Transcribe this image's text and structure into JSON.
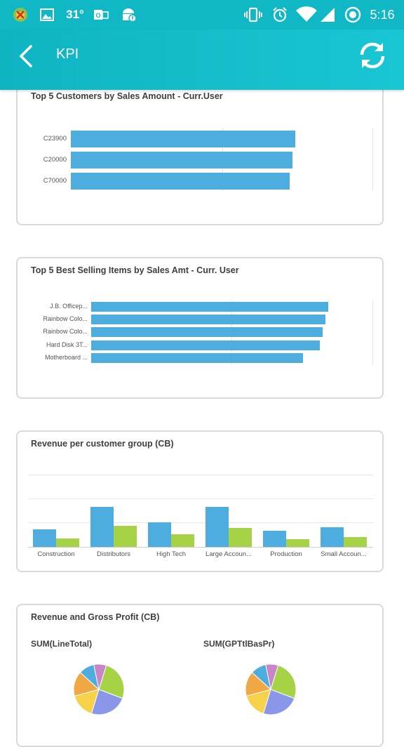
{
  "status_bar": {
    "temperature": "31°",
    "time": "5:16",
    "icons": [
      "android-debug-icon",
      "image-icon",
      "outlook-icon",
      "android-alert-icon",
      "vibrate-icon",
      "alarm-icon",
      "wifi-icon",
      "signal-icon",
      "sync-status-icon"
    ]
  },
  "header": {
    "title": "KPI",
    "back_icon": "chevron-left-icon",
    "refresh_icon": "refresh-icon"
  },
  "colors": {
    "primary": "#10b8c6",
    "bar_blue": "#4eaddf",
    "bar_green": "#a6d246",
    "card_border": "#d9d9d9"
  },
  "cards": {
    "top_customers": {
      "title": "Top 5 Customers by Sales Amount - Curr.User"
    },
    "top_items": {
      "title": "Top 5 Best Selling Items by Sales Amt - Curr. User"
    },
    "revenue_group": {
      "title": "Revenue per customer group (CB)"
    },
    "revenue_profit": {
      "title": "Revenue and Gross Profit (CB)",
      "left_label": "SUM(LineTotal)",
      "right_label": "SUM(GPTtlBasPr)"
    }
  },
  "chart_data": [
    {
      "type": "bar",
      "orientation": "horizontal",
      "title": "Top 5 Customers by Sales Amount - Curr.User",
      "categories": [
        "C23900",
        "C20000",
        "C70000"
      ],
      "values": [
        0.75,
        0.74,
        0.73
      ],
      "grid": true
    },
    {
      "type": "bar",
      "orientation": "horizontal",
      "title": "Top 5 Best Selling Items by Sales Amt - Curr. User",
      "categories": [
        "J.B. Officep...",
        "Rainbow Colo...",
        "Rainbow Colo...",
        "Hard Disk 3T...",
        "Motherboard ..."
      ],
      "values": [
        0.84,
        0.83,
        0.82,
        0.81,
        0.75
      ],
      "grid": true
    },
    {
      "type": "bar",
      "title": "Revenue per customer group (CB)",
      "categories": [
        "Construction",
        "Distributors",
        "High Tech",
        "Large Accoun...",
        "Production",
        "Small Accoun..."
      ],
      "series": [
        {
          "values": [
            24,
            55,
            34,
            55,
            22,
            27
          ],
          "color": "#4eaddf"
        },
        {
          "values": [
            12,
            29,
            17,
            26,
            11,
            14
          ],
          "color": "#a6d246"
        }
      ],
      "ylim": [
        0,
        100
      ],
      "grid": true
    },
    {
      "type": "pie",
      "title": "SUM(LineTotal)",
      "values": [
        26,
        24,
        16,
        16,
        10,
        8
      ],
      "colors": [
        "#a6d246",
        "#8a96e8",
        "#f5d24a",
        "#f0a845",
        "#4eaddf",
        "#c885c9"
      ]
    },
    {
      "type": "pie",
      "title": "SUM(GPTtlBasPr)",
      "values": [
        26,
        24,
        16,
        16,
        10,
        8
      ],
      "colors": [
        "#a6d246",
        "#8a96e8",
        "#f5d24a",
        "#f0a845",
        "#4eaddf",
        "#c885c9"
      ]
    }
  ]
}
